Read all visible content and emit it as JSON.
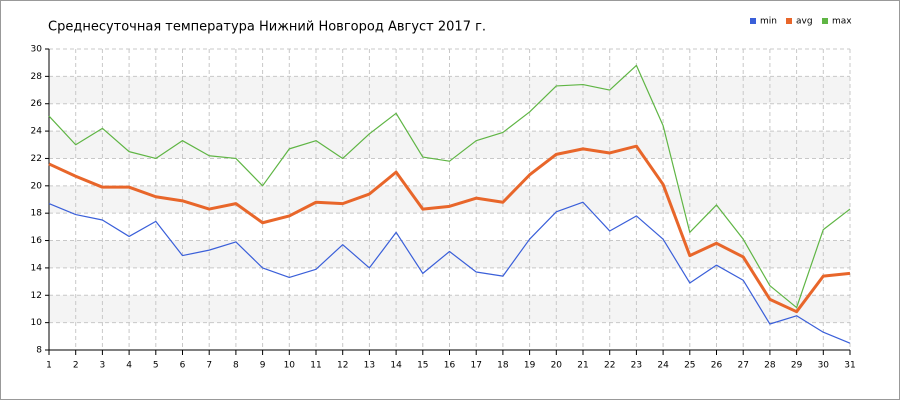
{
  "chart_data": {
    "type": "line",
    "title": "Среднесуточная температура Нижний Новгород  Август 2017 г.",
    "x": [
      1,
      2,
      3,
      4,
      5,
      6,
      7,
      8,
      9,
      10,
      11,
      12,
      13,
      14,
      15,
      16,
      17,
      18,
      19,
      20,
      21,
      22,
      23,
      24,
      25,
      26,
      27,
      28,
      29,
      30,
      31
    ],
    "xlim": [
      1,
      31
    ],
    "xticks": [
      1,
      2,
      3,
      4,
      5,
      6,
      7,
      8,
      9,
      10,
      11,
      12,
      13,
      14,
      15,
      16,
      17,
      18,
      19,
      20,
      21,
      22,
      23,
      24,
      25,
      26,
      27,
      28,
      29,
      30,
      31
    ],
    "ylim": [
      8,
      30
    ],
    "yticks": [
      8,
      10,
      12,
      14,
      16,
      18,
      20,
      22,
      24,
      26,
      28,
      30
    ],
    "grid": true,
    "legend": "top-right",
    "series": [
      {
        "name": "min",
        "color": "#3a5fd9",
        "values": [
          18.7,
          17.9,
          17.5,
          16.3,
          17.4,
          14.9,
          15.3,
          15.9,
          14.0,
          13.3,
          13.9,
          15.7,
          14.0,
          16.6,
          13.6,
          15.2,
          13.7,
          13.4,
          16.1,
          18.1,
          18.8,
          16.7,
          17.8,
          16.1,
          12.9,
          14.2,
          13.1,
          9.9,
          10.5,
          9.3,
          8.5
        ]
      },
      {
        "name": "avg",
        "color": "#e8662a",
        "values": [
          21.6,
          20.7,
          19.9,
          19.9,
          19.2,
          18.9,
          18.3,
          18.7,
          17.3,
          17.8,
          18.8,
          18.7,
          19.4,
          21.0,
          18.3,
          18.5,
          19.1,
          18.8,
          20.8,
          22.3,
          22.7,
          22.4,
          22.9,
          20.1,
          14.9,
          15.8,
          14.8,
          11.7,
          10.8,
          13.4,
          13.6
        ]
      },
      {
        "name": "max",
        "color": "#5fb544",
        "values": [
          25.1,
          23.0,
          24.2,
          22.5,
          22.0,
          23.3,
          22.2,
          22.0,
          20.0,
          22.7,
          23.3,
          22.0,
          23.8,
          25.3,
          22.1,
          21.8,
          23.3,
          23.9,
          25.4,
          27.3,
          27.4,
          27.0,
          28.8,
          24.4,
          16.6,
          18.6,
          16.1,
          12.7,
          11.1,
          16.8,
          18.3
        ]
      }
    ]
  }
}
